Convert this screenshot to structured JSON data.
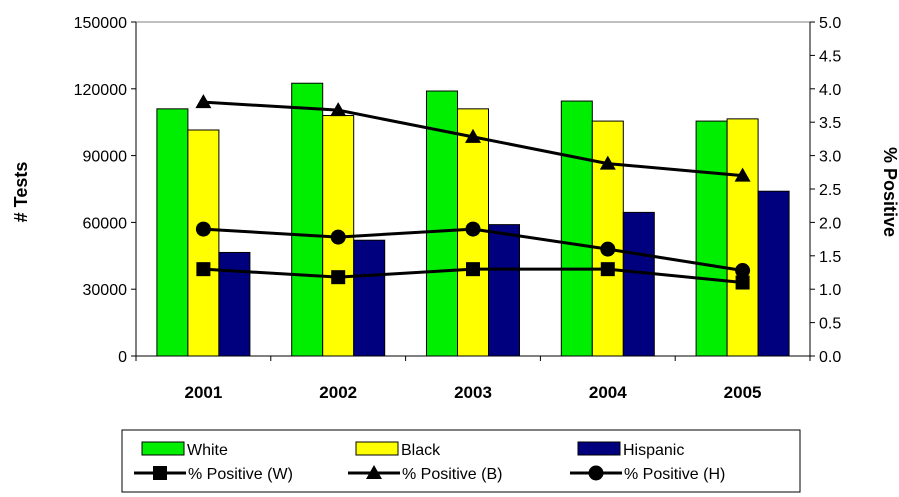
{
  "chart_data": {
    "type": "bar",
    "categories": [
      "2001",
      "2002",
      "2003",
      "2004",
      "2005"
    ],
    "ylabel": "# Tests",
    "y2label": "% Positive",
    "ylim": [
      0,
      150000
    ],
    "y2lim": [
      0,
      5.0
    ],
    "yticks": [
      "0",
      "30000",
      "60000",
      "90000",
      "120000",
      "150000"
    ],
    "y2ticks": [
      "0.0",
      "0.5",
      "1.0",
      "1.5",
      "2.0",
      "2.5",
      "3.0",
      "3.5",
      "4.0",
      "4.5",
      "5.0"
    ],
    "bar_series": [
      {
        "name": "White",
        "color": "#00ee00",
        "values": [
          111000,
          122500,
          119000,
          114500,
          105500
        ]
      },
      {
        "name": "Black",
        "color": "#ffff00",
        "values": [
          101500,
          108000,
          111000,
          105500,
          106500
        ]
      },
      {
        "name": "Hispanic",
        "color": "#00007f",
        "values": [
          46500,
          52000,
          59000,
          64500,
          74000
        ]
      }
    ],
    "line_series": [
      {
        "name": "% Positive (W)",
        "marker": "square",
        "values": [
          1.3,
          1.18,
          1.3,
          1.3,
          1.1
        ]
      },
      {
        "name": "% Positive (B)",
        "marker": "triangle",
        "values": [
          3.8,
          3.68,
          3.28,
          2.88,
          2.7
        ]
      },
      {
        "name": "% Positive (H)",
        "marker": "circle",
        "values": [
          1.9,
          1.78,
          1.9,
          1.6,
          1.28
        ]
      }
    ],
    "legend_position": "bottom",
    "grid": false
  }
}
